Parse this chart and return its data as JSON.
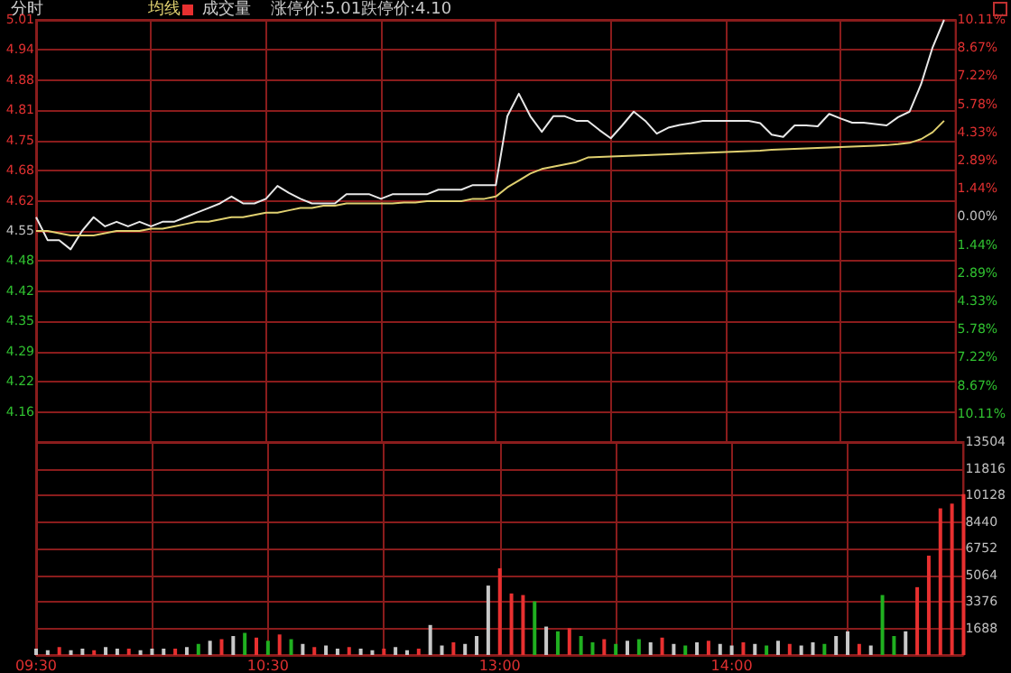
{
  "chart_data": [
    {
      "type": "line",
      "title": "分时",
      "categories": [
        null,
        null,
        null,
        null,
        null,
        null,
        null,
        null,
        null,
        null,
        null,
        null,
        null,
        null,
        null,
        null,
        null,
        null,
        null,
        null,
        null,
        null,
        null,
        null,
        null,
        null,
        null,
        null,
        null,
        null,
        null,
        null,
        null,
        null,
        null,
        null,
        null,
        null,
        null,
        null,
        null,
        null,
        null,
        null,
        null,
        null,
        null,
        null,
        null,
        null,
        null,
        null,
        null,
        null,
        null,
        null,
        null,
        null,
        null,
        null,
        null,
        null,
        null,
        null,
        null,
        null,
        null,
        null,
        null,
        null,
        null,
        null,
        null,
        null,
        null,
        null,
        null,
        null,
        null,
        null,
        null
      ],
      "series": [
        {
          "color": "#e8e8e8",
          "values": [
            4.58,
            4.53,
            4.53,
            4.51,
            4.55,
            4.58,
            4.56,
            4.57,
            4.56,
            4.57,
            4.56,
            4.57,
            4.57,
            4.58,
            4.59,
            4.6,
            4.61,
            4.625,
            4.61,
            4.61,
            4.62,
            4.648,
            4.633,
            4.62,
            4.61,
            4.61,
            4.61,
            4.63,
            4.63,
            4.63,
            4.62,
            4.63,
            4.63,
            4.63,
            4.63,
            4.64,
            4.64,
            4.64,
            4.65,
            4.65,
            4.65,
            4.8,
            4.849,
            4.8,
            4.766,
            4.8,
            4.8,
            4.79,
            4.79,
            4.77,
            4.752,
            4.78,
            4.81,
            4.79,
            4.762,
            4.775,
            4.781,
            4.785,
            4.79,
            4.79,
            4.79,
            4.79,
            4.79,
            4.785,
            4.76,
            4.755,
            4.78,
            4.78,
            4.778,
            4.805,
            4.795,
            4.786,
            4.786,
            4.783,
            4.78,
            4.798,
            4.81,
            4.87,
            4.95,
            5.01,
            null
          ]
        },
        {
          "name": "均线",
          "color": "#e0d070",
          "values": [
            4.55,
            4.55,
            4.545,
            4.54,
            4.54,
            4.54,
            4.545,
            4.55,
            4.55,
            4.55,
            4.555,
            4.555,
            4.56,
            4.565,
            4.57,
            4.57,
            4.575,
            4.58,
            4.58,
            4.585,
            4.59,
            4.59,
            4.595,
            4.6,
            4.6,
            4.605,
            4.605,
            4.61,
            4.61,
            4.61,
            4.61,
            4.61,
            4.612,
            4.612,
            4.615,
            4.615,
            4.615,
            4.615,
            4.62,
            4.62,
            4.625,
            4.645,
            4.66,
            4.675,
            4.685,
            4.69,
            4.695,
            4.7,
            4.71,
            4.711,
            4.712,
            4.713,
            4.714,
            4.715,
            4.716,
            4.717,
            4.718,
            4.719,
            4.72,
            4.721,
            4.722,
            4.723,
            4.724,
            4.725,
            4.727,
            4.728,
            4.729,
            4.73,
            4.731,
            4.732,
            4.733,
            4.734,
            4.735,
            4.736,
            4.737,
            4.739,
            4.742,
            4.75,
            4.765,
            4.79,
            null
          ]
        }
      ],
      "ylim": [
        4.09,
        5.01
      ],
      "yticks": [
        {
          "value": 4.09,
          "label": null
        },
        {
          "value": 4.156,
          "label": "4.16"
        },
        {
          "value": 4.221,
          "label": "4.22"
        },
        {
          "value": 4.287,
          "label": "4.29"
        },
        {
          "value": 4.353,
          "label": "4.35"
        },
        {
          "value": 4.419,
          "label": "4.42"
        },
        {
          "value": 4.484,
          "label": "4.48"
        },
        4.55,
        {
          "value": 4.616,
          "label": "4.62"
        },
        {
          "value": 4.681,
          "label": "4.68"
        },
        {
          "value": 4.747,
          "label": "4.75"
        },
        {
          "value": 4.813,
          "label": "4.81"
        },
        {
          "value": 4.879,
          "label": "4.88"
        },
        {
          "value": 4.944,
          "label": "4.94"
        },
        5.01
      ],
      "y2lim": [
        -11.55,
        10.11
      ],
      "y2ticks": [
        {
          "value": -11.55,
          "label": null
        },
        {
          "value": -10.11,
          "label": "10.11%"
        },
        {
          "value": -8.67,
          "label": "8.67%"
        },
        {
          "value": -7.22,
          "label": "7.22%"
        },
        {
          "value": -5.78,
          "label": "5.78%"
        },
        {
          "value": -4.33,
          "label": "4.33%"
        },
        {
          "value": -2.89,
          "label": "2.89%"
        },
        {
          "value": -1.44,
          "label": "1.44%"
        },
        {
          "value": 0,
          "label": "0.00%"
        },
        {
          "value": 1.44,
          "label": "1.44%"
        },
        {
          "value": 2.89,
          "label": "2.89%"
        },
        {
          "value": 4.33,
          "label": "4.33%"
        },
        {
          "value": 5.78,
          "label": "5.78%"
        },
        {
          "value": 7.22,
          "label": "7.22%"
        },
        {
          "value": 8.67,
          "label": "8.67%"
        },
        {
          "value": 10.11,
          "label": "10.11%"
        }
      ],
      "grid": true,
      "legend": "top",
      "tick_labels": "y",
      "line_style": "solid",
      "annotations": [
        "涨停价:5.01",
        "跌停价:4.10"
      ]
    },
    {
      "type": "bar",
      "categories": [
        "09:30",
        null,
        null,
        null,
        null,
        null,
        null,
        null,
        null,
        null,
        null,
        null,
        null,
        null,
        null,
        null,
        null,
        null,
        null,
        null,
        "10:30",
        null,
        null,
        null,
        null,
        null,
        null,
        null,
        null,
        null,
        null,
        null,
        null,
        null,
        null,
        null,
        null,
        null,
        null,
        null,
        "13:00",
        null,
        null,
        null,
        null,
        null,
        null,
        null,
        null,
        null,
        null,
        null,
        null,
        null,
        null,
        null,
        null,
        null,
        null,
        null,
        "14:00",
        null,
        null,
        null,
        null,
        null,
        null,
        null,
        null,
        null,
        null,
        null,
        null,
        null,
        null,
        null,
        null,
        null,
        null,
        null,
        null
      ],
      "series": [
        {
          "name": "成交量",
          "colors": [
            "#c8c8c8",
            "#c8c8c8",
            "#e83030",
            "#c8c8c8",
            "#c8c8c8",
            "#e83030",
            "#c8c8c8",
            "#c8c8c8",
            "#e83030",
            "#c8c8c8",
            "#c8c8c8",
            "#c8c8c8",
            "#e83030",
            "#c8c8c8",
            "#20b020",
            "#c8c8c8",
            "#e83030",
            "#c8c8c8",
            "#20b020",
            "#e83030",
            "#20b020",
            "#e83030",
            "#20b020",
            "#c8c8c8",
            "#e83030",
            "#c8c8c8",
            "#c8c8c8",
            "#e83030",
            "#c8c8c8",
            "#c8c8c8",
            "#e83030",
            "#c8c8c8",
            "#c8c8c8",
            "#e83030",
            "#c8c8c8",
            "#c8c8c8",
            "#e83030",
            "#c8c8c8",
            "#c8c8c8",
            "#c8c8c8",
            "#e83030",
            "#e83030",
            "#e83030",
            "#20b020",
            "#c8c8c8",
            "#20b020",
            "#e83030",
            "#20b020",
            "#20b020",
            "#e83030",
            "#20b020",
            "#c8c8c8",
            "#20b020",
            "#c8c8c8",
            "#e83030",
            "#c8c8c8",
            "#20b020",
            "#c8c8c8",
            "#e83030",
            "#c8c8c8",
            "#c8c8c8",
            "#e83030",
            "#c8c8c8",
            "#20b020",
            "#c8c8c8",
            "#e83030",
            "#c8c8c8",
            "#c8c8c8",
            "#20b020",
            "#c8c8c8",
            "#c8c8c8",
            "#e83030",
            "#c8c8c8",
            "#20b020",
            "#20b020",
            "#c8c8c8",
            "#e83030",
            "#e83030",
            "#e83030",
            "#e83030",
            "#e83030"
          ],
          "values": [
            400,
            300,
            500,
            300,
            400,
            300,
            500,
            400,
            400,
            300,
            400,
            400,
            400,
            500,
            700,
            900,
            1000,
            1200,
            1400,
            1100,
            900,
            1300,
            1000,
            700,
            500,
            600,
            400,
            500,
            400,
            300,
            400,
            500,
            300,
            400,
            1900,
            600,
            800,
            700,
            1200,
            4400,
            5500,
            3900,
            3800,
            3400,
            1800,
            1500,
            1700,
            1200,
            800,
            1000,
            700,
            900,
            1000,
            800,
            1100,
            700,
            600,
            800,
            900,
            700,
            600,
            800,
            700,
            600,
            900,
            700,
            600,
            800,
            700,
            1200,
            1500,
            700,
            600,
            3800,
            1200,
            1500,
            4300,
            6300,
            9300,
            9600,
            10200
          ]
        }
      ],
      "ylim": [
        0,
        13504
      ],
      "yticks": [
        {
          "value": 0,
          "label": null
        },
        1688,
        3376,
        5064,
        6752,
        8440,
        10128,
        11816,
        13504
      ],
      "grid": true,
      "legend": "top"
    }
  ]
}
